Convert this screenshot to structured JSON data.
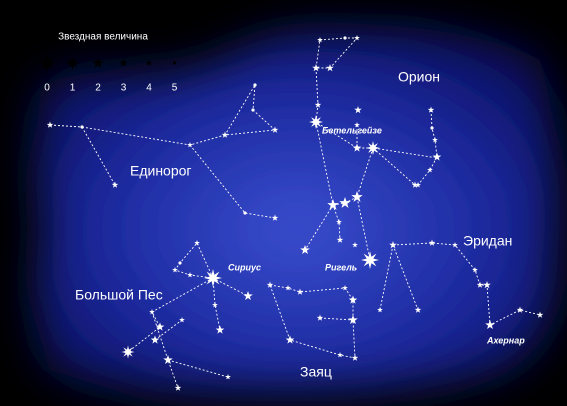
{
  "legend": {
    "title": "Звездная величина",
    "magnitudes": [
      0,
      1,
      2,
      3,
      4,
      5
    ]
  },
  "labels": {
    "orion": "Орион",
    "betelgeuse": "Бетельгейзе",
    "monoceros": "Единорог",
    "eridanus": "Эридан",
    "sirius": "Сириус",
    "rigel": "Ригель",
    "canis_major": "Большой Пес",
    "lepus": "Заяц",
    "achernar": "Ахернар"
  }
}
